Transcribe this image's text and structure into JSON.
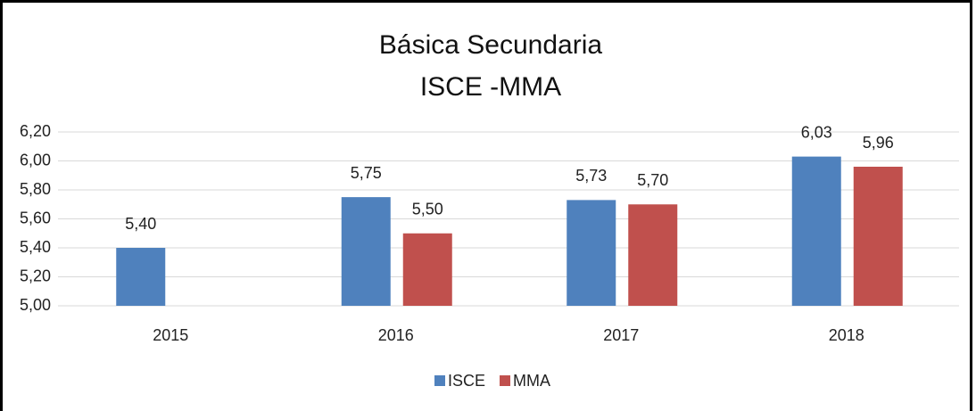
{
  "chart_data": {
    "type": "bar",
    "title": "Básica Secundaria",
    "subtitle": "ISCE -MMA",
    "categories": [
      "2015",
      "2016",
      "2017",
      "2018"
    ],
    "series": [
      {
        "name": "ISCE",
        "color": "#4f81bd",
        "values": [
          5.4,
          5.75,
          5.73,
          6.03
        ],
        "value_labels": [
          "5,40",
          "5,75",
          "5,73",
          "6,03"
        ]
      },
      {
        "name": "MMA",
        "color": "#c0504d",
        "values": [
          null,
          5.5,
          5.7,
          5.96
        ],
        "value_labels": [
          null,
          "5,50",
          "5,70",
          "5,96"
        ]
      }
    ],
    "ylim": [
      5.0,
      6.2
    ],
    "yticks": [
      {
        "value": 5.0,
        "label": "5,00"
      },
      {
        "value": 5.2,
        "label": "5,20"
      },
      {
        "value": 5.4,
        "label": "5,40"
      },
      {
        "value": 5.6,
        "label": "5,60"
      },
      {
        "value": 5.8,
        "label": "5,80"
      },
      {
        "value": 6.0,
        "label": "6,00"
      },
      {
        "value": 6.2,
        "label": "6,20"
      }
    ],
    "grid": true,
    "legend": "bottom"
  }
}
